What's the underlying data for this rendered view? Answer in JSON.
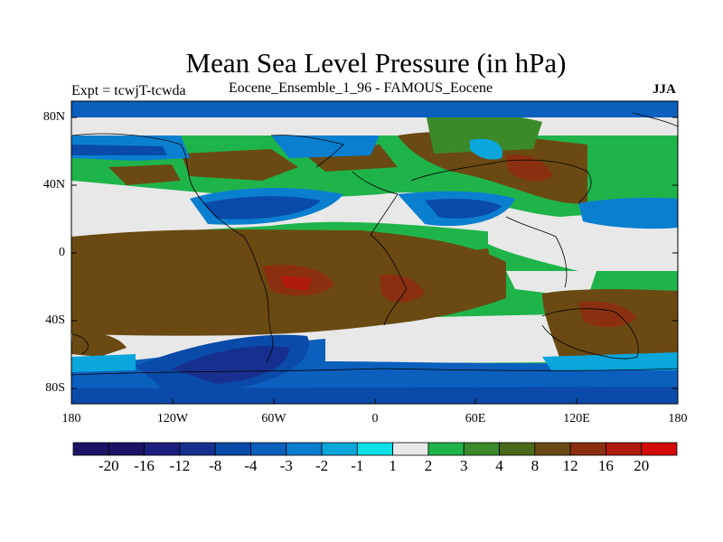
{
  "title": "Mean Sea Level Pressure (in hPa)",
  "expt_label": "Expt = tcwjT-tcwda",
  "subtitle": "Eocene_Ensemble_1_96 - FAMOUS_Eocene",
  "season": "JJA",
  "lat_ticks": [
    "80N",
    "40N",
    "0",
    "40S",
    "80S"
  ],
  "lon_ticks": [
    "180",
    "120W",
    "60W",
    "0",
    "60E",
    "120E",
    "180"
  ],
  "colorbar": {
    "labels": [
      "-20",
      "-16",
      "-12",
      "-8",
      "-4",
      "-3",
      "-2",
      "-1",
      "1",
      "2",
      "3",
      "4",
      "8",
      "12",
      "16",
      "20"
    ],
    "colors": [
      "#1b1464",
      "#1c1e7e",
      "#17308f",
      "#0a4aa8",
      "#0b5fbd",
      "#0a7fd0",
      "#0aa6dc",
      "#0ae0e6",
      "#e8e8e8",
      "#1fb44a",
      "#3a8a2a",
      "#4a6a1a",
      "#6a4a12",
      "#8a3010",
      "#b01a0a",
      "#d40a0a"
    ]
  }
}
